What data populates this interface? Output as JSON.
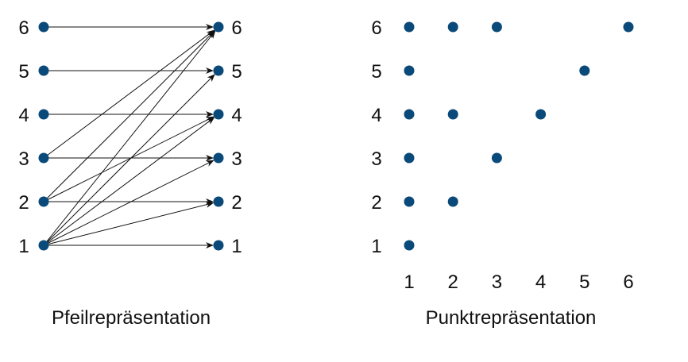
{
  "colors": {
    "dot": "#0a4a7a",
    "line": "#111111",
    "text": "#111111"
  },
  "arrow_diagram": {
    "caption": "Pfeilrepräsentation",
    "left_labels": [
      "1",
      "2",
      "3",
      "4",
      "5",
      "6"
    ],
    "right_labels": [
      "1",
      "2",
      "3",
      "4",
      "5",
      "6"
    ],
    "relation": [
      [
        1,
        1
      ],
      [
        1,
        2
      ],
      [
        1,
        3
      ],
      [
        1,
        4
      ],
      [
        1,
        5
      ],
      [
        1,
        6
      ],
      [
        2,
        2
      ],
      [
        2,
        4
      ],
      [
        2,
        6
      ],
      [
        3,
        3
      ],
      [
        3,
        6
      ],
      [
        4,
        4
      ],
      [
        5,
        5
      ],
      [
        6,
        6
      ]
    ]
  },
  "dot_diagram": {
    "caption": "Punktrepräsentation",
    "x_labels": [
      "1",
      "2",
      "3",
      "4",
      "5",
      "6"
    ],
    "y_labels": [
      "1",
      "2",
      "3",
      "4",
      "5",
      "6"
    ],
    "points": [
      [
        1,
        1
      ],
      [
        1,
        2
      ],
      [
        2,
        2
      ],
      [
        1,
        3
      ],
      [
        3,
        3
      ],
      [
        1,
        4
      ],
      [
        2,
        4
      ],
      [
        4,
        4
      ],
      [
        1,
        5
      ],
      [
        5,
        5
      ],
      [
        1,
        6
      ],
      [
        2,
        6
      ],
      [
        3,
        6
      ],
      [
        6,
        6
      ]
    ]
  }
}
